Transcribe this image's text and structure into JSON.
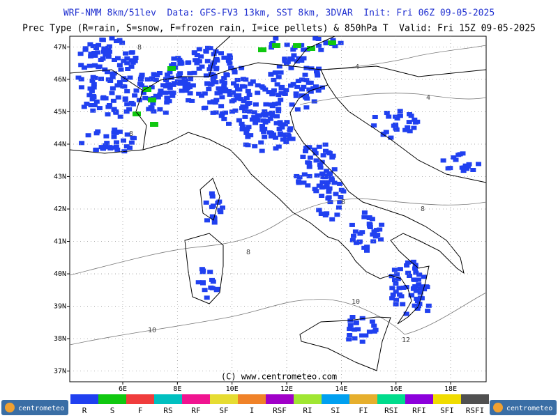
{
  "map": {
    "title": "WRF-NMM 8km/51lev  Data: GFS-FV3 13km, SST 8km, 3DVAR  Init: Fri 06Z 09-05-2025",
    "subtitle": "Prec Type (R=rain, S=snow, F=frozen rain, I=ice pellets) & 850hPa T  Valid: Fri 15Z 09-05-2025",
    "xlim": [
      4.06,
      19.3
    ],
    "ylim": [
      36.67,
      47.33
    ],
    "xticks": [
      {
        "value": 6,
        "label": "6E"
      },
      {
        "value": 8,
        "label": "8E"
      },
      {
        "value": 10,
        "label": "10E"
      },
      {
        "value": 12,
        "label": "12E"
      },
      {
        "value": 14,
        "label": "14E"
      },
      {
        "value": 16,
        "label": "16E"
      },
      {
        "value": 18,
        "label": "18E"
      }
    ],
    "yticks": [
      {
        "value": 37,
        "label": "37N"
      },
      {
        "value": 38,
        "label": "38N"
      },
      {
        "value": 39,
        "label": "39N"
      },
      {
        "value": 40,
        "label": "40N"
      },
      {
        "value": 41,
        "label": "41N"
      },
      {
        "value": 42,
        "label": "42N"
      },
      {
        "value": 43,
        "label": "43N"
      },
      {
        "value": 44,
        "label": "44N"
      },
      {
        "value": 45,
        "label": "45N"
      },
      {
        "value": 46,
        "label": "46N"
      },
      {
        "value": 47,
        "label": "47N"
      }
    ],
    "grid": true,
    "contour_labels": [
      8,
      8,
      4,
      4,
      8,
      8,
      8,
      10,
      10,
      12
    ],
    "copyright": "(C) www.centrometeo.com",
    "logo": "centrometeo",
    "legend": [
      {
        "label": "R",
        "color": "#2040f0"
      },
      {
        "label": "S",
        "color": "#10c810"
      },
      {
        "label": "F",
        "color": "#f03c3c"
      },
      {
        "label": "RS",
        "color": "#00c0c0"
      },
      {
        "label": "RF",
        "color": "#f01490"
      },
      {
        "label": "SF",
        "color": "#e6dc32"
      },
      {
        "label": "I",
        "color": "#f08228"
      },
      {
        "label": "RSF",
        "color": "#a000c8"
      },
      {
        "label": "RI",
        "color": "#a0e632"
      },
      {
        "label": "SI",
        "color": "#00a0f0"
      },
      {
        "label": "FI",
        "color": "#e6af2d"
      },
      {
        "label": "RSI",
        "color": "#00dc8c"
      },
      {
        "label": "RFI",
        "color": "#8c00dc"
      },
      {
        "label": "SFI",
        "color": "#f0dc00"
      },
      {
        "label": "RSFI",
        "color": "#505050"
      }
    ]
  }
}
